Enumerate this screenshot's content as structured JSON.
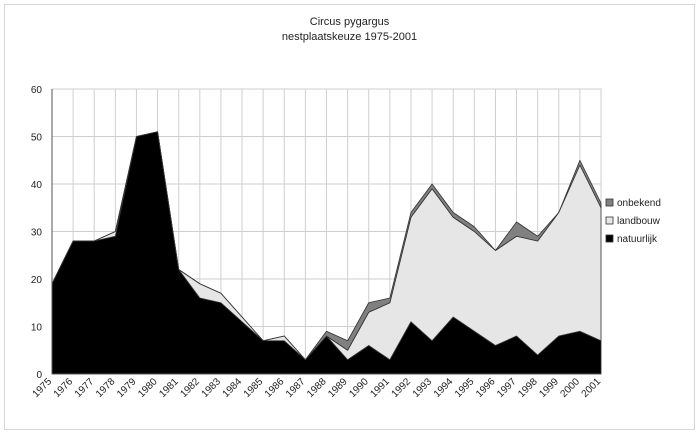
{
  "chart_data": {
    "type": "area",
    "stacked": true,
    "title": "Circus pygargus",
    "subtitle": "nestplaatskeuze 1975-2001",
    "xlabel": "",
    "ylabel": "",
    "ylim": [
      0,
      60
    ],
    "yticks": [
      0,
      10,
      20,
      30,
      40,
      50,
      60
    ],
    "grid": true,
    "legend_position": "right",
    "x": [
      "1975",
      "1976",
      "1977",
      "1978",
      "1979",
      "1980",
      "1981",
      "1982",
      "1983",
      "1984",
      "1985",
      "1986",
      "1987",
      "1988",
      "1989",
      "1990",
      "1991",
      "1992",
      "1993",
      "1994",
      "1995",
      "1996",
      "1997",
      "1998",
      "1999",
      "2000",
      "2001"
    ],
    "series": [
      {
        "name": "natuurlijk",
        "color": "#000000",
        "values": [
          19,
          28,
          28,
          29,
          50,
          51,
          22,
          16,
          15,
          11,
          7,
          7,
          3,
          8,
          3,
          6,
          3,
          11,
          7,
          12,
          9,
          6,
          8,
          4,
          8,
          9,
          7
        ]
      },
      {
        "name": "landbouw",
        "color": "#e6e6e6",
        "values": [
          0,
          0,
          0,
          1,
          0,
          0,
          0,
          3,
          2,
          1,
          0,
          1,
          0,
          0,
          2,
          7,
          12,
          22,
          32,
          21,
          21,
          20,
          21,
          24,
          26,
          35,
          28
        ]
      },
      {
        "name": "onbekend",
        "color": "#808080",
        "values": [
          0,
          0,
          0,
          0,
          0,
          0,
          0,
          0,
          0,
          0,
          0,
          0,
          0,
          1,
          2,
          2,
          1,
          1,
          1,
          1,
          1,
          0,
          3,
          1,
          0,
          1,
          1
        ]
      }
    ]
  }
}
